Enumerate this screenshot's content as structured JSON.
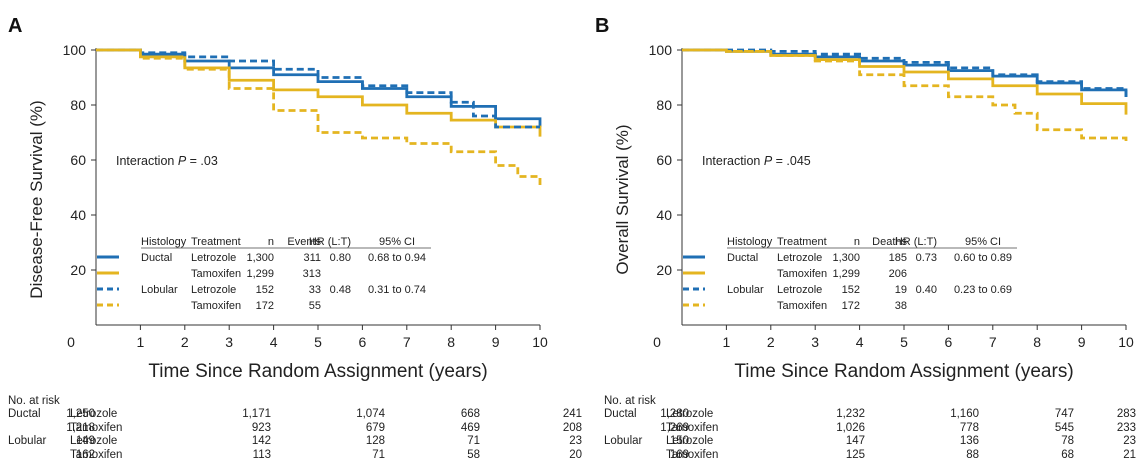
{
  "chart_data": [
    {
      "type": "line",
      "panel_label": "A",
      "ylabel": "Disease-Free Survival (%)",
      "xlabel": "Time Since Random Assignment (years)",
      "xlim": [
        0,
        10
      ],
      "ylim": [
        0,
        100
      ],
      "xticks": [
        "0",
        "1",
        "2",
        "3",
        "4",
        "5",
        "6",
        "7",
        "8",
        "9",
        "10"
      ],
      "yticks": [
        "20",
        "40",
        "60",
        "80",
        "100"
      ],
      "grid": false,
      "annotation": {
        "prefix": "Interaction ",
        "italic": "P",
        "suffix": " = .03"
      },
      "legend": {
        "headers": [
          "Histology",
          "Treatment",
          "n",
          "Events",
          "HR (L:T)",
          "95% CI"
        ],
        "rows": [
          {
            "histology": "Ductal",
            "treatment": "Letrozole",
            "n": "1,300",
            "count": "311",
            "hr": "0.80",
            "ci": "0.68 to 0.94",
            "color": "#1f6fb4",
            "dash": false
          },
          {
            "histology": "",
            "treatment": "Tamoxifen",
            "n": "1,299",
            "count": "313",
            "hr": "",
            "ci": "",
            "color": "#e4b520",
            "dash": false
          },
          {
            "histology": "Lobular",
            "treatment": "Letrozole",
            "n": "152",
            "count": "33",
            "hr": "0.48",
            "ci": "0.31 to 0.74",
            "color": "#1f6fb4",
            "dash": true
          },
          {
            "histology": "",
            "treatment": "Tamoxifen",
            "n": "172",
            "count": "55",
            "hr": "",
            "ci": "",
            "color": "#e4b520",
            "dash": true
          }
        ]
      },
      "series": [
        {
          "color": "#1f6fb4",
          "dash": false,
          "x": [
            0,
            1,
            2,
            3,
            4,
            5,
            6,
            7,
            8,
            9,
            10
          ],
          "y": [
            100,
            98.5,
            96,
            93.5,
            91,
            88.5,
            86,
            83,
            79.5,
            75,
            72
          ]
        },
        {
          "color": "#e4b520",
          "dash": false,
          "x": [
            0,
            1,
            2,
            3,
            4,
            5,
            6,
            7,
            8,
            9,
            10
          ],
          "y": [
            100,
            97.5,
            93.5,
            89,
            85.5,
            83,
            80,
            77,
            74.5,
            72,
            68.5
          ]
        },
        {
          "color": "#1f6fb4",
          "dash": true,
          "x": [
            0,
            1,
            2,
            3,
            4,
            5,
            6,
            7,
            8,
            8.5,
            9,
            10
          ],
          "y": [
            100,
            99,
            97.5,
            96,
            93,
            90,
            87,
            84.5,
            81,
            76,
            72,
            72
          ]
        },
        {
          "color": "#e4b520",
          "dash": true,
          "x": [
            0,
            1,
            2,
            3,
            4,
            5,
            6,
            7,
            8,
            9,
            9.5,
            10
          ],
          "y": [
            100,
            97,
            93,
            86,
            78,
            70,
            68,
            66,
            63,
            58,
            54,
            50
          ]
        }
      ],
      "risk_table": {
        "title": "No. at risk",
        "rows": [
          {
            "group": "Ductal",
            "treatment": "Letrozole",
            "values": [
              "1,250",
              "1,171",
              "1,074",
              "668",
              "241"
            ]
          },
          {
            "group": "",
            "treatment": "Tamoxifen",
            "values": [
              "1,218",
              "923",
              "679",
              "469",
              "208"
            ]
          },
          {
            "group": "Lobular",
            "treatment": "Letrozole",
            "values": [
              "149",
              "142",
              "128",
              "71",
              "23"
            ]
          },
          {
            "group": "",
            "treatment": "Tamoxifen",
            "values": [
              "162",
              "113",
              "71",
              "58",
              "20"
            ]
          }
        ]
      }
    },
    {
      "type": "line",
      "panel_label": "B",
      "ylabel": "Overall Survival (%)",
      "xlabel": "Time Since Random Assignment (years)",
      "xlim": [
        0,
        10
      ],
      "ylim": [
        0,
        100
      ],
      "xticks": [
        "0",
        "1",
        "2",
        "3",
        "4",
        "5",
        "6",
        "7",
        "8",
        "9",
        "10"
      ],
      "yticks": [
        "20",
        "40",
        "60",
        "80",
        "100"
      ],
      "grid": false,
      "annotation": {
        "prefix": "Interaction ",
        "italic": "P",
        "suffix": " = .045"
      },
      "legend": {
        "headers": [
          "Histology",
          "Treatment",
          "n",
          "Deaths",
          "HR (L:T)",
          "95% CI"
        ],
        "rows": [
          {
            "histology": "Ductal",
            "treatment": "Letrozole",
            "n": "1,300",
            "count": "185",
            "hr": "0.73",
            "ci": "0.60 to 0.89",
            "color": "#1f6fb4",
            "dash": false
          },
          {
            "histology": "",
            "treatment": "Tamoxifen",
            "n": "1,299",
            "count": "206",
            "hr": "",
            "ci": "",
            "color": "#e4b520",
            "dash": false
          },
          {
            "histology": "Lobular",
            "treatment": "Letrozole",
            "n": "152",
            "count": "19",
            "hr": "0.40",
            "ci": "0.23 to 0.69",
            "color": "#1f6fb4",
            "dash": true
          },
          {
            "histology": "",
            "treatment": "Tamoxifen",
            "n": "172",
            "count": "38",
            "hr": "",
            "ci": "",
            "color": "#e4b520",
            "dash": true
          }
        ]
      },
      "series": [
        {
          "color": "#1f6fb4",
          "dash": false,
          "x": [
            0,
            1,
            2,
            3,
            4,
            5,
            6,
            7,
            8,
            9,
            10
          ],
          "y": [
            100,
            99.5,
            98.5,
            97.5,
            96,
            94.5,
            92.5,
            90.5,
            88,
            85.5,
            83
          ]
        },
        {
          "color": "#e4b520",
          "dash": false,
          "x": [
            0,
            1,
            2,
            3,
            4,
            5,
            6,
            7,
            8,
            9,
            10
          ],
          "y": [
            100,
            99.5,
            98,
            96.5,
            94,
            92,
            89.5,
            87,
            84,
            80.5,
            76.5
          ]
        },
        {
          "color": "#1f6fb4",
          "dash": true,
          "x": [
            0,
            1,
            2,
            3,
            4,
            5,
            6,
            7,
            8,
            9,
            10
          ],
          "y": [
            100,
            100,
            99.5,
            98.5,
            97,
            95.5,
            93.5,
            91,
            88.5,
            86,
            82.5
          ]
        },
        {
          "color": "#e4b520",
          "dash": true,
          "x": [
            0,
            1,
            2,
            3,
            4,
            5,
            6,
            7,
            7.5,
            8,
            9,
            10
          ],
          "y": [
            100,
            99.5,
            98,
            96,
            91,
            87,
            83,
            80,
            77,
            71,
            68,
            66
          ]
        }
      ],
      "risk_table": {
        "title": "No. at risk",
        "rows": [
          {
            "group": "Ductal",
            "treatment": "Letrozole",
            "values": [
              "1,280",
              "1,232",
              "1,160",
              "747",
              "283"
            ]
          },
          {
            "group": "",
            "treatment": "Tamoxifen",
            "values": [
              "1,269",
              "1,026",
              "778",
              "545",
              "233"
            ]
          },
          {
            "group": "Lobular",
            "treatment": "Letrozole",
            "values": [
              "150",
              "147",
              "136",
              "78",
              "23"
            ]
          },
          {
            "group": "",
            "treatment": "Tamoxifen",
            "values": [
              "169",
              "125",
              "88",
              "68",
              "21"
            ]
          }
        ]
      }
    }
  ]
}
